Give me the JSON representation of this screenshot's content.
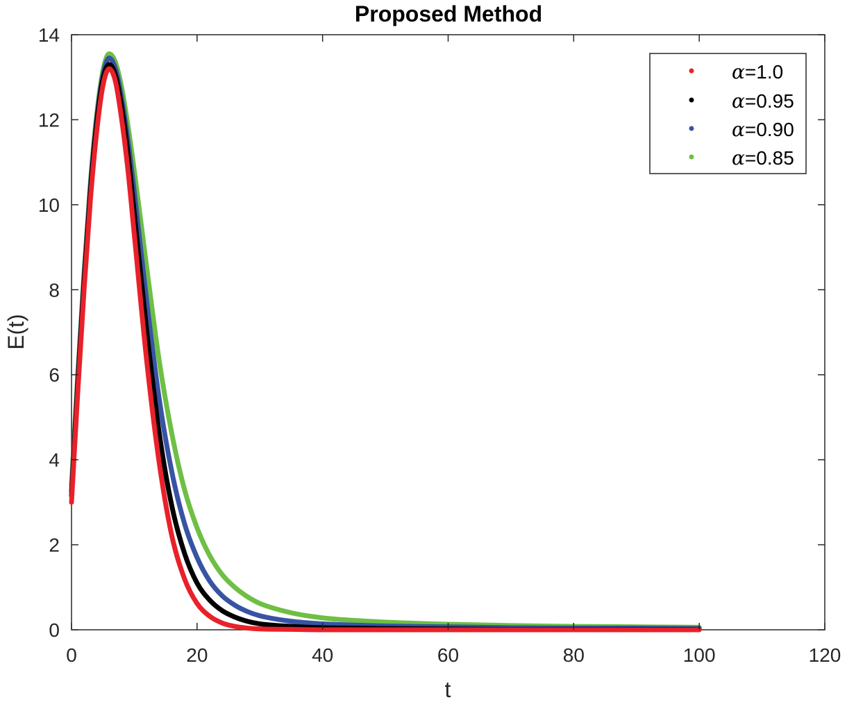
{
  "chart_data": {
    "type": "line",
    "title": "Proposed Method",
    "xlabel": "t",
    "ylabel": "E(t)",
    "xlim": [
      0,
      120
    ],
    "ylim": [
      0,
      14
    ],
    "xticks": [
      0,
      20,
      40,
      60,
      80,
      100,
      120
    ],
    "yticks": [
      0,
      2,
      4,
      6,
      8,
      10,
      12,
      14
    ],
    "grid": false,
    "legend_position": "top-right",
    "legend_symbol": "α",
    "x": [
      0,
      1,
      2,
      3,
      4,
      5,
      6,
      7,
      8,
      9,
      10,
      12,
      14,
      16,
      18,
      20,
      22,
      24,
      26,
      28,
      30,
      35,
      40,
      45,
      50,
      60,
      70,
      80,
      90,
      100
    ],
    "series": [
      {
        "name": "=1.0",
        "color": "#e8212a",
        "values": [
          3.0,
          5.6,
          8.0,
          10.1,
          11.7,
          12.8,
          13.2,
          12.9,
          12.0,
          10.8,
          9.3,
          6.3,
          3.9,
          2.2,
          1.2,
          0.62,
          0.32,
          0.16,
          0.08,
          0.04,
          0.02,
          0.01,
          0.0,
          0.0,
          0.0,
          0.0,
          0.0,
          0.0,
          0.0,
          0.0
        ]
      },
      {
        "name": "=0.95",
        "color": "#000000",
        "values": [
          3.15,
          5.8,
          8.2,
          10.3,
          11.9,
          12.95,
          13.3,
          13.05,
          12.3,
          11.2,
          9.8,
          7.0,
          4.6,
          2.9,
          1.8,
          1.1,
          0.7,
          0.45,
          0.3,
          0.2,
          0.14,
          0.08,
          0.05,
          0.04,
          0.03,
          0.02,
          0.01,
          0.01,
          0.01,
          0.01
        ]
      },
      {
        "name": "=0.90",
        "color": "#3953a4",
        "values": [
          3.25,
          5.9,
          8.3,
          10.4,
          12.0,
          13.05,
          13.45,
          13.2,
          12.5,
          11.5,
          10.3,
          7.7,
          5.4,
          3.7,
          2.5,
          1.7,
          1.15,
          0.8,
          0.58,
          0.43,
          0.33,
          0.2,
          0.14,
          0.11,
          0.09,
          0.07,
          0.05,
          0.04,
          0.04,
          0.03
        ]
      },
      {
        "name": "=0.85",
        "color": "#6ebf44",
        "values": [
          3.4,
          6.0,
          8.4,
          10.5,
          12.1,
          13.15,
          13.55,
          13.35,
          12.75,
          11.85,
          10.8,
          8.5,
          6.3,
          4.6,
          3.3,
          2.4,
          1.75,
          1.3,
          1.0,
          0.78,
          0.62,
          0.4,
          0.28,
          0.22,
          0.18,
          0.13,
          0.1,
          0.08,
          0.07,
          0.06
        ]
      }
    ]
  }
}
